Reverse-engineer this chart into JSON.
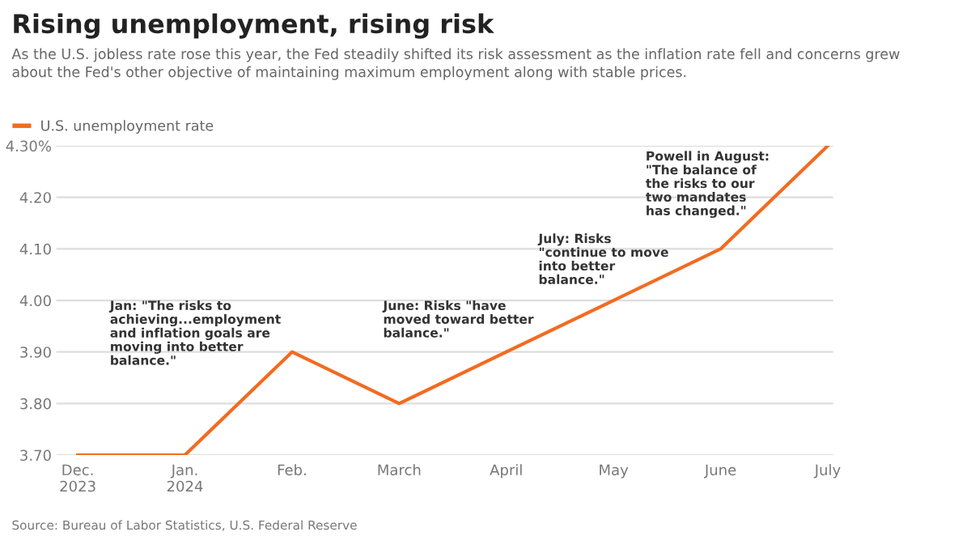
{
  "chart_data": {
    "type": "line",
    "title": "Rising unemployment, rising risk",
    "subtitle": "As the U.S. jobless rate rose this year, the Fed steadily shifted its risk assessment as the inflation rate fell and concerns grew\nabout the Fed's other objective of maintaining maximum employment along with stable prices.",
    "categories": [
      "Dec.\n2023",
      "Jan.\n2024",
      "Feb.",
      "March",
      "April",
      "May",
      "June",
      "July"
    ],
    "series": [
      {
        "name": "U.S. unemployment rate",
        "color": "#f26b21",
        "values": [
          3.7,
          3.7,
          3.9,
          3.8,
          3.9,
          4.0,
          4.1,
          4.3
        ]
      }
    ],
    "ylim": [
      3.7,
      4.3
    ],
    "yticks": [
      {
        "value": 3.7,
        "label": "3.70"
      },
      {
        "value": 3.8,
        "label": "3.80"
      },
      {
        "value": 3.9,
        "label": "3.90"
      },
      {
        "value": 4.0,
        "label": "4.00"
      },
      {
        "value": 4.1,
        "label": "4.10"
      },
      {
        "value": 4.2,
        "label": "4.20"
      },
      {
        "value": 4.3,
        "label": "4.30%"
      }
    ],
    "grid": "y",
    "legend": "top left",
    "marker": "none",
    "line_style": "solid",
    "annotations": [
      "Jan: \"The risks to\nachieving...employment\nand inflation goals are\nmoving into better\nbalance.\"",
      "June: Risks \"have\nmoved toward better\nbalance.\"",
      "July: Risks\n\"continue to move\ninto better\nbalance.\"",
      "Powell in August:\n\"The balance of\nthe risks to our\ntwo mandates\nhas changed.\"",
      "Source: Bureau of Labor Statistics, U.S. Federal Reserve"
    ]
  }
}
